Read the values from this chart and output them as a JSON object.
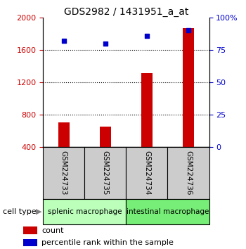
{
  "title": "GDS2982 / 1431951_a_at",
  "samples": [
    "GSM224733",
    "GSM224735",
    "GSM224734",
    "GSM224736"
  ],
  "counts": [
    700,
    650,
    1310,
    1870
  ],
  "percentile_ranks": [
    82,
    80,
    86,
    90
  ],
  "left_ylim": [
    400,
    2000
  ],
  "left_yticks": [
    400,
    800,
    1200,
    1600,
    2000
  ],
  "left_yticklabels": [
    "400",
    "800",
    "1200",
    "1600",
    "2000"
  ],
  "right_ylim": [
    0,
    100
  ],
  "right_yticks": [
    0,
    25,
    50,
    75,
    100
  ],
  "right_yticklabels": [
    "0",
    "25",
    "50",
    "75",
    "100%"
  ],
  "bar_color": "#cc0000",
  "dot_color": "#0000cc",
  "groups": [
    {
      "label": "splenic macrophage",
      "samples": [
        0,
        1
      ],
      "color": "#bbffbb"
    },
    {
      "label": "intestinal macrophage",
      "samples": [
        2,
        3
      ],
      "color": "#77ee77"
    }
  ],
  "cell_type_label": "cell type",
  "legend_count_label": "count",
  "legend_pct_label": "percentile rank within the sample",
  "tick_color_left": "#cc0000",
  "tick_color_right": "#0000cc",
  "sample_box_color": "#cccccc",
  "title_fontsize": 10,
  "tick_fontsize": 8,
  "label_fontsize": 7.5
}
